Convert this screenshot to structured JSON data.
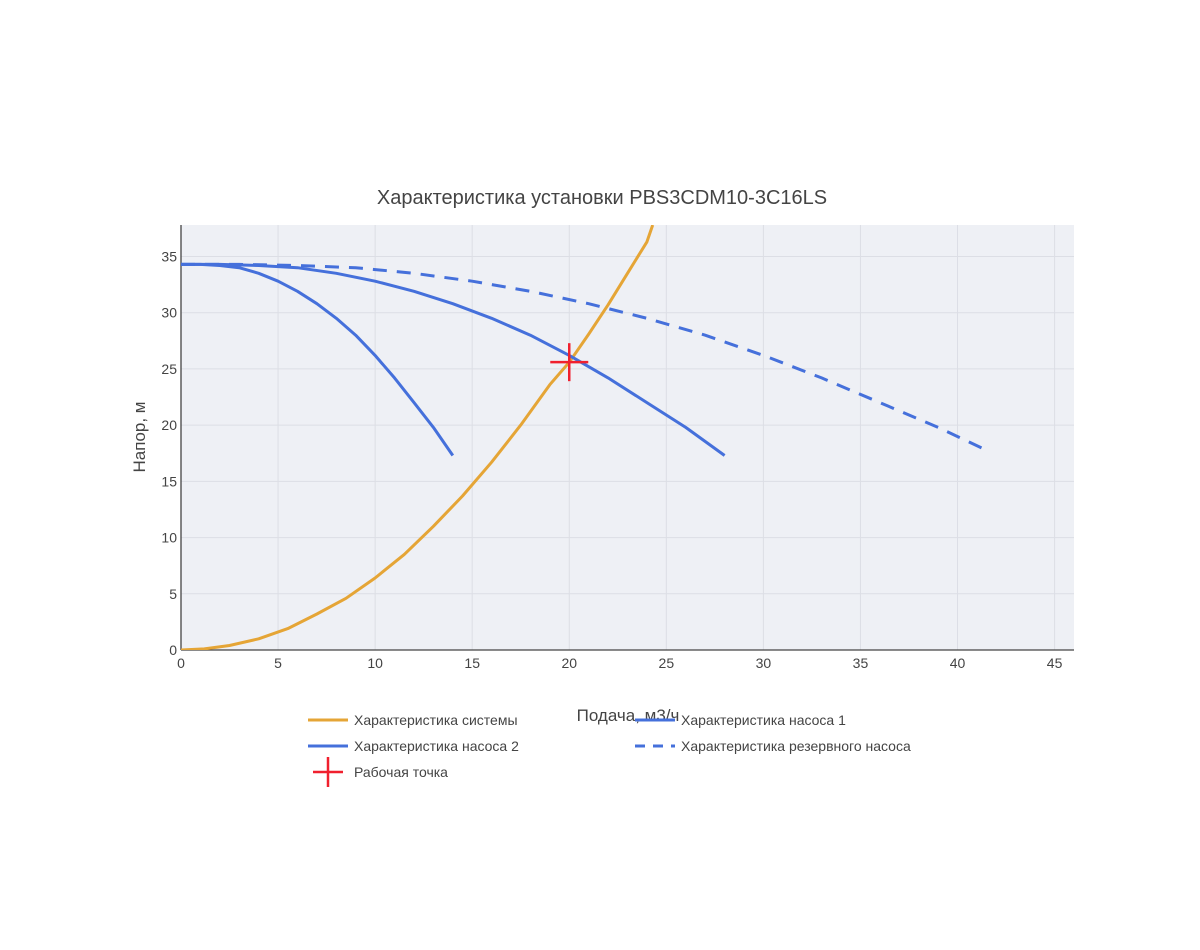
{
  "chart_data": {
    "type": "line",
    "title": "Характеристика установки PBS3CDM10-3C16LS",
    "xlabel": "Подача, м3/ч",
    "ylabel": "Напор, м",
    "xlim": [
      0,
      46
    ],
    "ylim": [
      0,
      37.8
    ],
    "xticks": [
      0,
      5,
      10,
      15,
      20,
      25,
      30,
      35,
      40,
      45
    ],
    "yticks": [
      0,
      5,
      10,
      15,
      20,
      25,
      30,
      35
    ],
    "grid": true,
    "legend_position": "bottom",
    "colors": {
      "plot_background": "#eef0f5",
      "grid": "#dcdee5",
      "system": "#e5a536",
      "pump": "#4570db",
      "operating_point": "#f0202e"
    },
    "series": [
      {
        "name": "Характеристика системы",
        "color": "#e5a536",
        "dash": "solid",
        "x": [
          0,
          1.2,
          2.5,
          4.0,
          5.5,
          7.0,
          8.5,
          10.0,
          11.5,
          13.0,
          14.5,
          16.0,
          17.5,
          19.0,
          20.0,
          21.0,
          22.0,
          23.0,
          24.0,
          24.3
        ],
        "y": [
          0,
          0.1,
          0.4,
          1.0,
          1.9,
          3.2,
          4.6,
          6.4,
          8.5,
          11.0,
          13.7,
          16.7,
          20.0,
          23.6,
          25.6,
          28.1,
          30.7,
          33.5,
          36.3,
          37.8
        ]
      },
      {
        "name": "Характеристика насоса 1",
        "color": "#4570db",
        "dash": "solid",
        "x": [
          0,
          1,
          2,
          3,
          4,
          5,
          6,
          7,
          8,
          9,
          10,
          11,
          12,
          13,
          14
        ],
        "y": [
          34.3,
          34.3,
          34.2,
          34.0,
          33.5,
          32.8,
          31.9,
          30.8,
          29.5,
          28.0,
          26.2,
          24.2,
          22.0,
          19.8,
          17.3
        ]
      },
      {
        "name": "Характеристика насоса 2",
        "color": "#4570db",
        "dash": "solid",
        "x": [
          0,
          2,
          4,
          6,
          8,
          10,
          12,
          14,
          16,
          18,
          20,
          22,
          24,
          26,
          28
        ],
        "y": [
          34.3,
          34.3,
          34.2,
          34.0,
          33.5,
          32.8,
          31.9,
          30.8,
          29.5,
          28.0,
          26.2,
          24.2,
          22.0,
          19.8,
          17.3
        ]
      },
      {
        "name": "Характеристика резервного насоса",
        "color": "#4570db",
        "dash": "dash",
        "x": [
          0,
          3,
          6,
          9,
          12,
          15,
          18,
          21,
          24,
          27,
          30,
          33,
          36,
          39,
          41.7
        ],
        "y": [
          34.3,
          34.3,
          34.2,
          34.0,
          33.5,
          32.8,
          31.9,
          30.8,
          29.5,
          28.0,
          26.2,
          24.2,
          22.0,
          19.8,
          17.6
        ]
      }
    ],
    "operating_point": {
      "name": "Рабочая точка",
      "color": "#f0202e",
      "x": 20,
      "y": 25.6
    }
  }
}
